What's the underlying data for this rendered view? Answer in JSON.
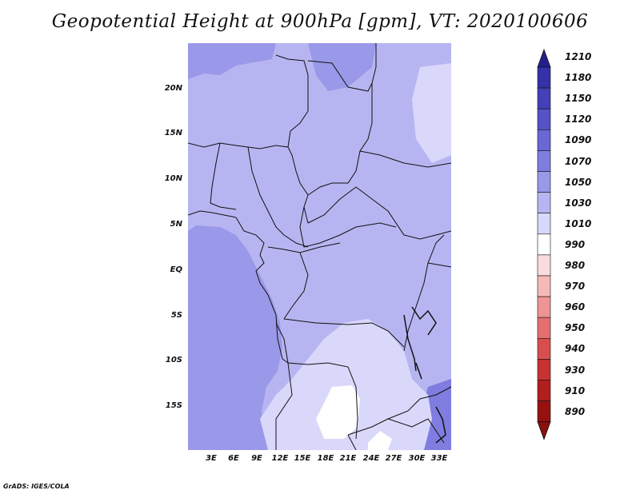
{
  "title": "Geopotential Height at 900hPa [gpm], VT: 2020100606",
  "footer": "GrADS: IGES/COLA",
  "lat_labels": [
    "20N",
    "15N",
    "10N",
    "5N",
    "EQ",
    "5S",
    "10S",
    "15S"
  ],
  "lon_labels": [
    "3E",
    "6E",
    "9E",
    "12E",
    "15E",
    "18E",
    "21E",
    "24E",
    "27E",
    "30E",
    "33E"
  ],
  "legend": {
    "levels": [
      "1210",
      "1180",
      "1150",
      "1120",
      "1090",
      "1070",
      "1050",
      "1030",
      "1010",
      "990",
      "980",
      "970",
      "960",
      "950",
      "940",
      "930",
      "910",
      "890"
    ],
    "colors": [
      "#2a2796",
      "#3531a8",
      "#4540b8",
      "#5552c6",
      "#6a67d4",
      "#7f7ddf",
      "#9a98e8",
      "#b7b5f1",
      "#d9d8fa",
      "#ffffff",
      "#fbdcdc",
      "#f6b9b9",
      "#ee9494",
      "#e47070",
      "#d84e4e",
      "#c83232",
      "#b21e1e",
      "#981111"
    ],
    "top_triangle_color": "#221f8a",
    "bottom_triangle_color": "#8a1010"
  },
  "map": {
    "region": "Central Africa",
    "lon_range": [
      0,
      34
    ],
    "lat_range": [
      -20,
      24
    ],
    "field_colors": {
      "dominant": "#b7b5f1",
      "darker": "#9a98e8",
      "lighter": "#d9d8fa",
      "lightest": "#ffffff"
    }
  }
}
